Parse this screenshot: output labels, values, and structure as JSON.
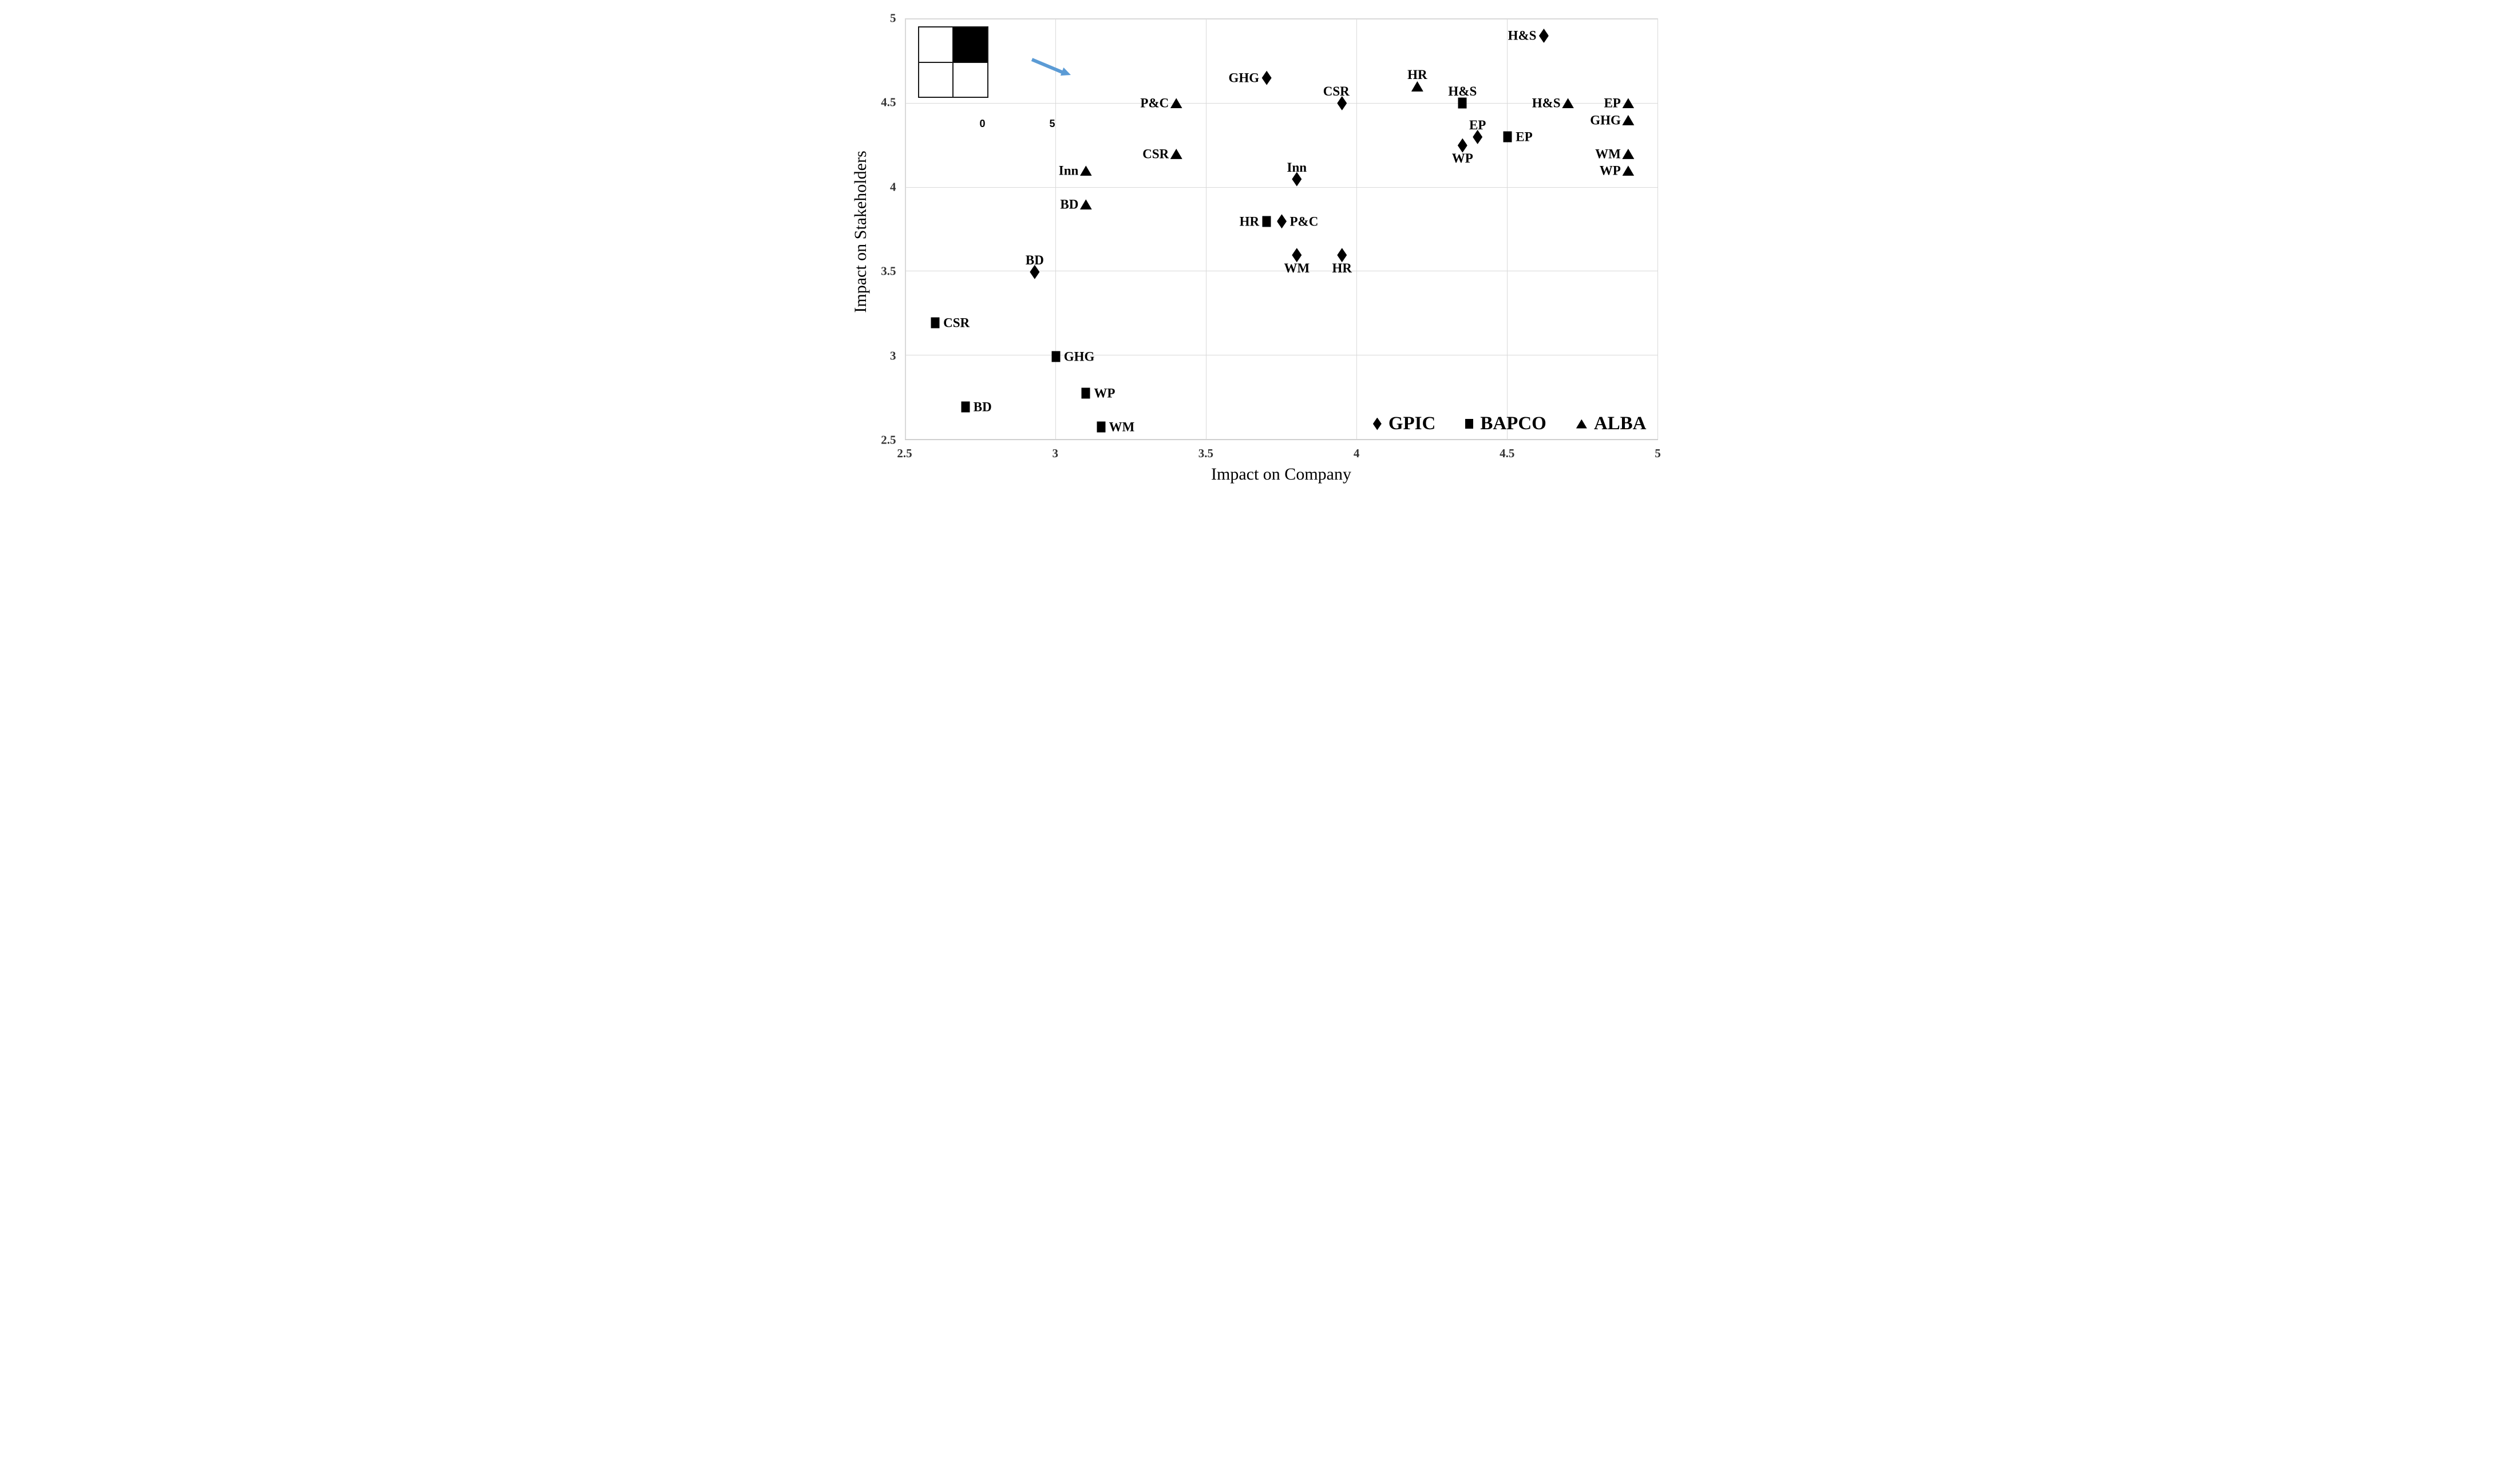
{
  "chart_data": {
    "type": "scatter",
    "title": "",
    "xlabel": "Impact on Company",
    "ylabel": "Impact on Stakeholders",
    "xlim": [
      2.5,
      5
    ],
    "ylim": [
      2.5,
      5
    ],
    "xtick_labels": [
      "2.5",
      "3",
      "3.5",
      "4",
      "4.5",
      "5"
    ],
    "ytick_labels": [
      "5",
      "4.5",
      "4",
      "3.5",
      "3",
      "2.5"
    ],
    "xticks": [
      2.5,
      3,
      3.5,
      4,
      4.5,
      5
    ],
    "yticks": [
      5,
      4.5,
      4,
      3.5,
      3,
      2.5
    ],
    "grid": true,
    "gridline_color": "#d9d9d9",
    "marker_color": "#000000",
    "legend": {
      "position": "inside-bottom-right",
      "entries": [
        "GPIC",
        "BAPCO",
        "ALBA"
      ]
    },
    "series": [
      {
        "name": "GPIC",
        "marker": "diamond",
        "marker_glyph": "♦",
        "points": [
          {
            "label": "H&S",
            "x": 4.62,
            "y": 4.9,
            "side": "left"
          },
          {
            "label": "GHG",
            "x": 3.7,
            "y": 4.65,
            "side": "left"
          },
          {
            "label": "CSR",
            "x": 3.95,
            "y": 4.5,
            "side": "above",
            "dx": -10
          },
          {
            "label": "EP",
            "x": 4.4,
            "y": 4.3,
            "side": "above"
          },
          {
            "label": "WP",
            "x": 4.35,
            "y": 4.25,
            "side": "below"
          },
          {
            "label": "Inn",
            "x": 3.8,
            "y": 4.05,
            "side": "above"
          },
          {
            "label": "P&C",
            "x": 3.75,
            "y": 3.8,
            "side": "right"
          },
          {
            "label": "WM",
            "x": 3.8,
            "y": 3.6,
            "side": "below"
          },
          {
            "label": "HR",
            "x": 3.95,
            "y": 3.6,
            "side": "below"
          },
          {
            "label": "BD",
            "x": 2.93,
            "y": 3.5,
            "side": "above"
          }
        ]
      },
      {
        "name": "BAPCO",
        "marker": "square",
        "marker_glyph": "■",
        "points": [
          {
            "label": "H&S",
            "x": 4.35,
            "y": 4.5,
            "side": "above"
          },
          {
            "label": "EP",
            "x": 4.5,
            "y": 4.3,
            "side": "right"
          },
          {
            "label": "HR",
            "x": 3.7,
            "y": 3.8,
            "side": "left"
          },
          {
            "label": "CSR",
            "x": 2.6,
            "y": 3.2,
            "side": "right"
          },
          {
            "label": "GHG",
            "x": 3.0,
            "y": 3.0,
            "side": "right"
          },
          {
            "label": "WP",
            "x": 3.1,
            "y": 2.78,
            "side": "right"
          },
          {
            "label": "BD",
            "x": 2.7,
            "y": 2.7,
            "side": "right"
          },
          {
            "label": "WM",
            "x": 3.15,
            "y": 2.58,
            "side": "right"
          }
        ]
      },
      {
        "name": "ALBA",
        "marker": "triangle",
        "marker_glyph": "▲",
        "points": [
          {
            "label": "HR",
            "x": 4.2,
            "y": 4.6,
            "side": "above"
          },
          {
            "label": "H&S",
            "x": 4.7,
            "y": 4.5,
            "side": "left"
          },
          {
            "label": "EP",
            "x": 4.9,
            "y": 4.5,
            "side": "left"
          },
          {
            "label": "GHG",
            "x": 4.9,
            "y": 4.4,
            "side": "left"
          },
          {
            "label": "WM",
            "x": 4.9,
            "y": 4.2,
            "side": "left"
          },
          {
            "label": "WP",
            "x": 4.9,
            "y": 4.1,
            "side": "left"
          },
          {
            "label": "P&C",
            "x": 3.4,
            "y": 4.5,
            "side": "left"
          },
          {
            "label": "CSR",
            "x": 3.4,
            "y": 4.2,
            "side": "left"
          },
          {
            "label": "Inn",
            "x": 3.1,
            "y": 4.1,
            "side": "left"
          },
          {
            "label": "BD",
            "x": 3.1,
            "y": 3.9,
            "side": "left"
          }
        ]
      }
    ],
    "inset": {
      "position": "top-left",
      "type": "quadrant-key",
      "top_left_value_label": "5",
      "bottom_left_value_label": "0",
      "bottom_right_value_label": "5",
      "filled_quadrant": "top-right",
      "fill_color": "#000000",
      "arrow_color": "#5b9bd5",
      "arrow_direction": "down-right"
    }
  }
}
